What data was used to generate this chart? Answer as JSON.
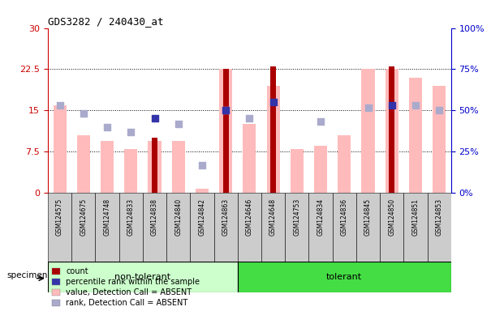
{
  "title": "GDS3282 / 240430_at",
  "samples": [
    "GSM124575",
    "GSM124675",
    "GSM124748",
    "GSM124833",
    "GSM124838",
    "GSM124840",
    "GSM124842",
    "GSM124863",
    "GSM124646",
    "GSM124648",
    "GSM124753",
    "GSM124834",
    "GSM124836",
    "GSM124845",
    "GSM124850",
    "GSM124851",
    "GSM124853"
  ],
  "non_tolerant_count": 8,
  "tolerant_count": 9,
  "value_absent": [
    16.0,
    10.5,
    9.5,
    8.0,
    9.5,
    9.5,
    0.8,
    22.5,
    12.5,
    19.5,
    8.0,
    8.5,
    10.5,
    22.5,
    22.5,
    21.0,
    19.5
  ],
  "rank_absent": [
    16.0,
    14.5,
    12.0,
    11.0,
    null,
    12.5,
    5.0,
    15.0,
    13.5,
    null,
    null,
    13.0,
    null,
    15.5,
    null,
    16.0,
    15.0
  ],
  "count_red": [
    null,
    null,
    null,
    null,
    10.0,
    null,
    null,
    22.5,
    null,
    23.0,
    null,
    null,
    null,
    null,
    23.0,
    null,
    null
  ],
  "rank_blue": [
    null,
    null,
    null,
    null,
    13.5,
    null,
    null,
    15.0,
    null,
    16.5,
    null,
    null,
    null,
    null,
    16.0,
    null,
    null
  ],
  "ylim_left": [
    0,
    30
  ],
  "ylim_right": [
    0,
    100
  ],
  "yticks_left": [
    0,
    7.5,
    15,
    22.5,
    30
  ],
  "yticks_right": [
    0,
    25,
    50,
    75,
    100
  ],
  "ytick_labels_left": [
    "0",
    "7.5",
    "15",
    "22.5",
    "30"
  ],
  "ytick_labels_right": [
    "0%",
    "25%",
    "50%",
    "75%",
    "100%"
  ],
  "hlines": [
    7.5,
    15.0,
    22.5
  ],
  "colors": {
    "count": "#aa0000",
    "rank_blue": "#3333aa",
    "value_absent": "#ffbbbb",
    "rank_absent": "#aaaacc",
    "non_tolerant_bg": "#ccffcc",
    "tolerant_bg": "#44dd44",
    "axis_left_color": "#cc0000",
    "axis_right_color": "#0000cc",
    "tickbox_bg": "#cccccc",
    "plot_bg": "#ffffff"
  },
  "legend": [
    {
      "label": "count",
      "color": "#aa0000"
    },
    {
      "label": "percentile rank within the sample",
      "color": "#3333aa"
    },
    {
      "label": "value, Detection Call = ABSENT",
      "color": "#ffbbbb"
    },
    {
      "label": "rank, Detection Call = ABSENT",
      "color": "#aaaacc"
    }
  ],
  "bar_width": 0.55,
  "red_bar_width": 0.25,
  "scatter_size": 35
}
